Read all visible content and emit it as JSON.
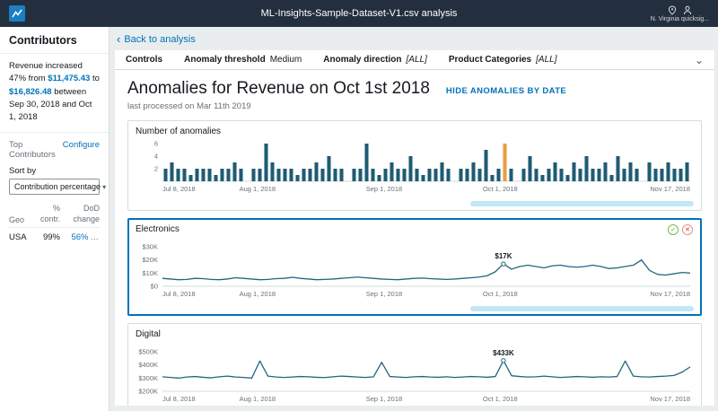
{
  "theme": {
    "accent": "#0073bb",
    "topbar-bg": "#232f3e",
    "border": "#d5dbdb",
    "text-dark": "#16191f",
    "text-gray": "#687078",
    "main-bg": "#eaeded",
    "scroll-thumb": "#c1e7f7",
    "selected-border": "#0073bb"
  },
  "icons": {
    "back": "‹",
    "chevron_down": "⌄",
    "select_caret": "▾",
    "ellipsis": "…",
    "check": "✓",
    "cross": "✕"
  },
  "topbar": {
    "title": "ML-Insights-Sample-Dataset-V1.csv analysis",
    "region_label": "N. Virginia quicksig..."
  },
  "sidebar": {
    "title": "Contributors",
    "summary": {
      "prefix": "Revenue increased 47% from",
      "from_value": "$11,475.43",
      "mid": "to",
      "to_value": "$16,826.48",
      "suffix": "between Sep 30, 2018 and Oct 1, 2018"
    },
    "top_contributors_label": "Top Contributors",
    "configure_label": "Configure",
    "sort_by_label": "Sort by",
    "sort_value": "Contribution percentage",
    "table": {
      "dimension": "Geo",
      "col1": "% contr.",
      "col2": "DoD change",
      "row": {
        "name": "USA",
        "contr": "99%",
        "dod": "56%"
      }
    }
  },
  "main": {
    "back_label": "Back to analysis",
    "controls": {
      "heading": "Controls",
      "items": [
        {
          "label": "Anomaly threshold",
          "value": "Medium"
        },
        {
          "label": "Anomaly direction",
          "value": "[ALL]"
        },
        {
          "label": "Product Categories",
          "value": "[ALL]"
        }
      ]
    },
    "title": "Anomalies for Revenue on Oct 1st 2018",
    "hide_link": "HIDE ANOMALIES BY DATE",
    "subtitle": "last processed on Mar 11th 2019"
  },
  "chart_data": [
    {
      "id": "anomalies",
      "type": "bar",
      "title": "Number of anomalies",
      "ylim": [
        0,
        6
      ],
      "yticks": [
        {
          "v": 2,
          "label": "2"
        },
        {
          "v": 4,
          "label": "4"
        },
        {
          "v": 6,
          "label": "6"
        }
      ],
      "xticks": [
        {
          "label": "Jul 8, 2018",
          "pos": 0
        },
        {
          "label": "Aug 1, 2018",
          "pos": 0.18
        },
        {
          "label": "Sep 1, 2018",
          "pos": 0.42
        },
        {
          "label": "Oct 1, 2018",
          "pos": 0.64
        },
        {
          "label": "Nov 17, 2018",
          "pos": 1
        }
      ],
      "values": [
        2,
        3,
        2,
        2,
        1,
        2,
        2,
        2,
        1,
        2,
        2,
        3,
        2,
        0,
        2,
        2,
        6,
        3,
        2,
        2,
        2,
        1,
        2,
        2,
        3,
        2,
        4,
        2,
        2,
        0,
        2,
        2,
        6,
        2,
        1,
        2,
        3,
        2,
        2,
        4,
        2,
        1,
        2,
        2,
        3,
        2,
        0,
        2,
        2,
        3,
        2,
        5,
        1,
        2,
        6,
        2,
        0,
        2,
        4,
        2,
        1,
        2,
        3,
        2,
        1,
        3,
        2,
        4,
        2,
        2,
        3,
        1,
        4,
        2,
        3,
        2,
        0,
        3,
        2,
        2,
        3,
        2,
        2,
        3
      ],
      "anomaly_index": 54,
      "bar_color": "#1f5b73",
      "anomaly_color": "#eb9d3f",
      "grid": false
    },
    {
      "id": "electronics",
      "type": "line",
      "title": "Electronics",
      "ylim": [
        0,
        30
      ],
      "yticks": [
        {
          "v": 0,
          "label": "$0"
        },
        {
          "v": 10,
          "label": "$10K"
        },
        {
          "v": 20,
          "label": "$20K"
        },
        {
          "v": 30,
          "label": "$30K"
        }
      ],
      "xticks": [
        {
          "label": "Jul 8, 2018",
          "pos": 0
        },
        {
          "label": "Aug 1, 2018",
          "pos": 0.18
        },
        {
          "label": "Sep 1, 2018",
          "pos": 0.42
        },
        {
          "label": "Oct 1, 2018",
          "pos": 0.64
        },
        {
          "label": "Nov 17, 2018",
          "pos": 1
        }
      ],
      "unit": "thousand USD",
      "values": [
        6,
        5.5,
        5,
        5.2,
        6,
        5.8,
        5.2,
        5,
        5.5,
        6.5,
        6,
        5.5,
        5,
        5.2,
        5.8,
        6,
        6.8,
        6,
        5.5,
        5,
        5.2,
        5.5,
        6,
        6.5,
        7,
        6.5,
        6,
        5.5,
        5.2,
        5,
        5.5,
        6,
        6.2,
        5.8,
        5.5,
        5.2,
        5.5,
        6,
        6.5,
        7,
        8,
        11,
        17,
        13,
        15,
        16,
        15,
        14,
        15.5,
        16,
        15,
        14.5,
        15,
        16,
        15,
        13.5,
        14,
        15,
        16,
        20,
        12,
        9,
        8.5,
        9.5,
        10.5,
        10
      ],
      "annotation": {
        "label": "$17K",
        "index": 42
      },
      "line_color": "#21677e",
      "selected": true,
      "grid": false
    },
    {
      "id": "digital",
      "type": "line",
      "title": "Digital",
      "ylim": [
        200,
        500
      ],
      "yticks": [
        {
          "v": 200,
          "label": "$200K"
        },
        {
          "v": 300,
          "label": "$300K"
        },
        {
          "v": 400,
          "label": "$400K"
        },
        {
          "v": 500,
          "label": "$500K"
        }
      ],
      "xticks": [
        {
          "label": "Jul 8, 2018",
          "pos": 0
        },
        {
          "label": "Aug 1, 2018",
          "pos": 0.18
        },
        {
          "label": "Sep 1, 2018",
          "pos": 0.42
        },
        {
          "label": "Oct 1, 2018",
          "pos": 0.64
        },
        {
          "label": "Nov 17, 2018",
          "pos": 1
        }
      ],
      "unit": "thousand USD",
      "values": [
        310,
        305,
        300,
        308,
        312,
        306,
        302,
        310,
        315,
        308,
        305,
        300,
        430,
        315,
        308,
        305,
        308,
        312,
        310,
        306,
        304,
        310,
        315,
        312,
        308,
        305,
        310,
        420,
        312,
        308,
        305,
        310,
        312,
        308,
        306,
        310,
        305,
        308,
        312,
        310,
        306,
        312,
        433,
        318,
        312,
        308,
        310,
        315,
        310,
        305,
        308,
        312,
        310,
        306,
        310,
        308,
        312,
        430,
        315,
        310,
        308,
        312,
        315,
        320,
        345,
        385
      ],
      "annotation": {
        "label": "$433K",
        "index": 42
      },
      "line_color": "#21677e",
      "selected": false,
      "grid": false
    }
  ]
}
